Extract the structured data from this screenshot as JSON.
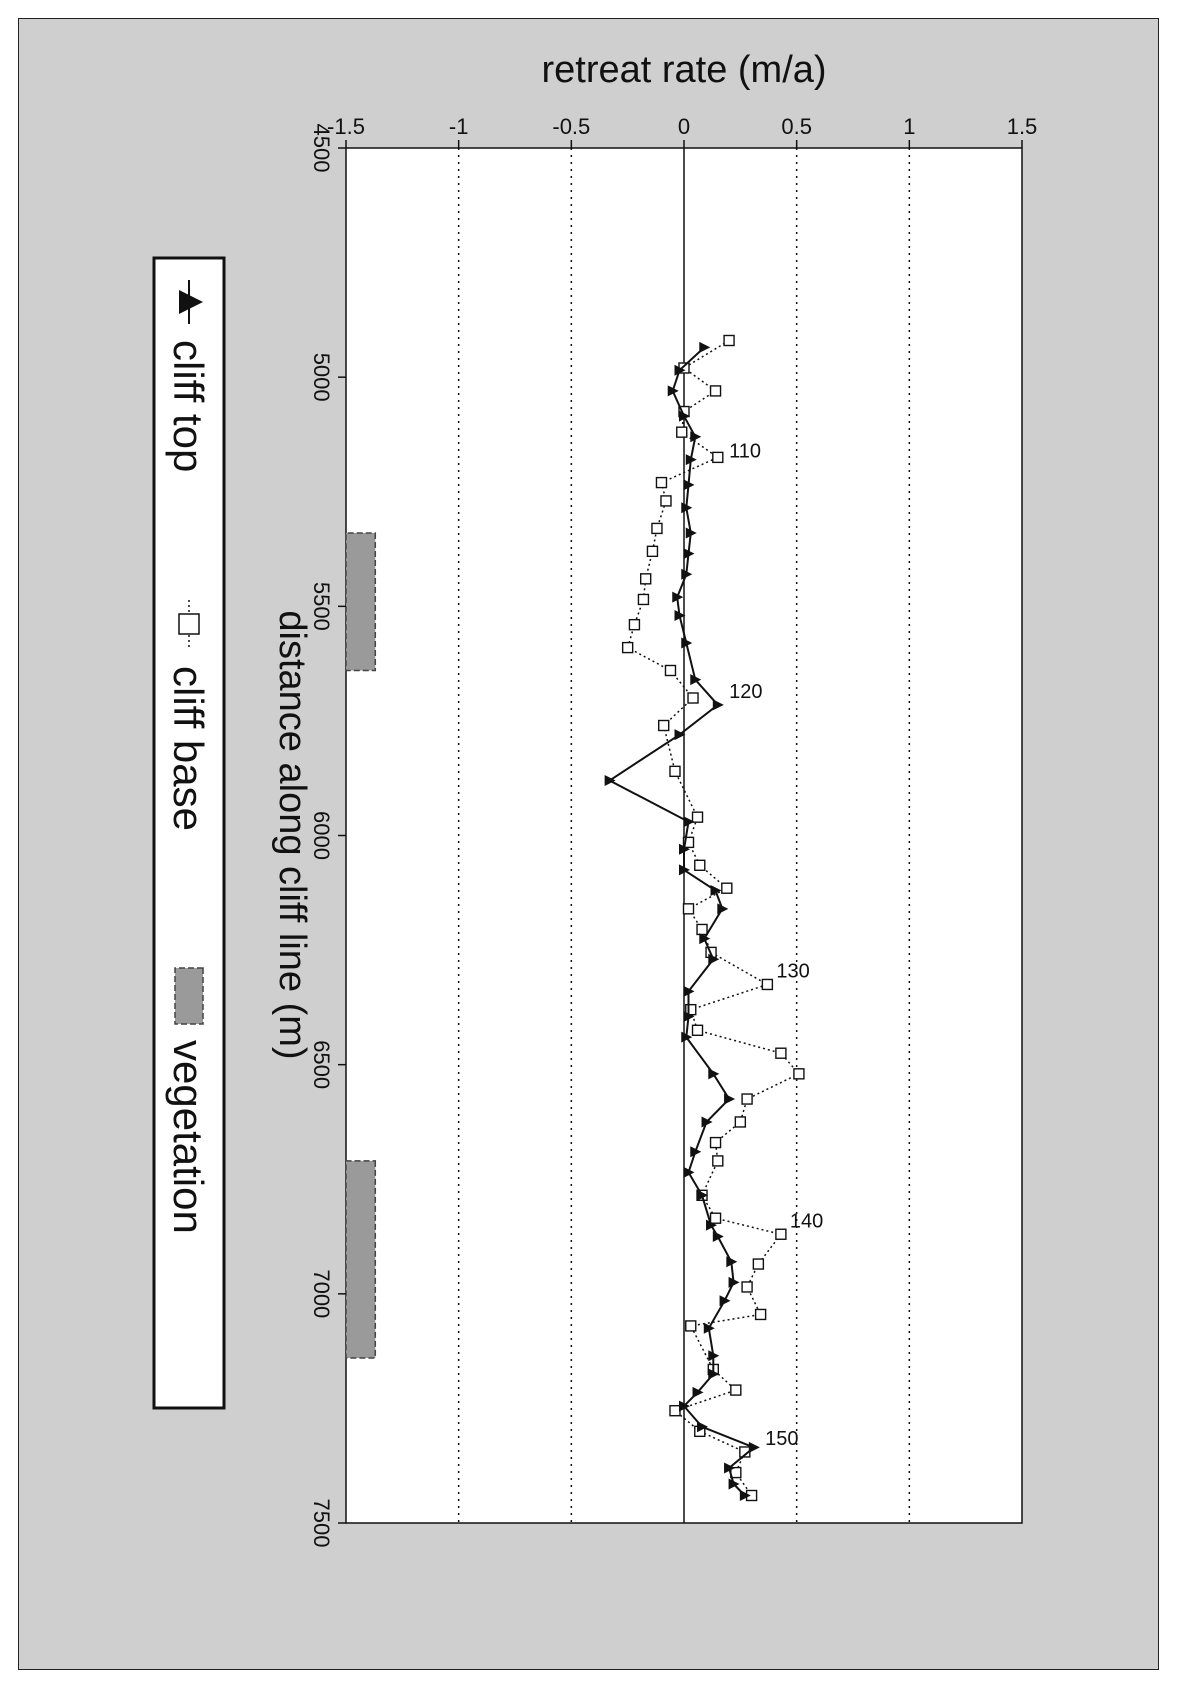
{
  "chart_data": {
    "type": "line",
    "xlabel": "distance along cliff line (m)",
    "ylabel": "retreat rate (m/a)",
    "xlim": [
      4500,
      7500
    ],
    "ylim": [
      -1.5,
      1.5
    ],
    "xticks": [
      4500,
      5000,
      5500,
      6000,
      6500,
      7000,
      7500
    ],
    "yticks": [
      -1.5,
      -1,
      -0.5,
      0,
      0.5,
      1,
      1.5
    ],
    "x_tick_labels": [
      "4500",
      "5000",
      "5500",
      "6000",
      "6500",
      "7000",
      "7500"
    ],
    "y_tick_labels": [
      "-1.5",
      "-1",
      "-0.5",
      "0",
      "0.5",
      "1",
      "1.5"
    ],
    "grid": "horizontal dotted at y = -1, -0.5, 0.5, 1; solid zero line",
    "legend_position": "bottom",
    "series": [
      {
        "name": "cliff top",
        "marker": "filled-triangle",
        "line": "solid",
        "color": "#111111",
        "points": [
          [
            4935,
            0.09
          ],
          [
            4985,
            -0.02
          ],
          [
            5030,
            -0.05
          ],
          [
            5085,
            0.0
          ],
          [
            5130,
            0.05
          ],
          [
            5180,
            0.03
          ],
          [
            5235,
            0.02
          ],
          [
            5285,
            0.01
          ],
          [
            5340,
            0.03
          ],
          [
            5385,
            0.02
          ],
          [
            5430,
            0.01
          ],
          [
            5480,
            -0.03
          ],
          [
            5520,
            -0.02
          ],
          [
            5580,
            0.01
          ],
          [
            5660,
            0.05
          ],
          [
            5715,
            0.15
          ],
          [
            5780,
            -0.02
          ],
          [
            5880,
            -0.33
          ],
          [
            5970,
            0.02
          ],
          [
            6030,
            0.0
          ],
          [
            6075,
            0.0
          ],
          [
            6120,
            0.14
          ],
          [
            6160,
            0.17
          ],
          [
            6225,
            0.09
          ],
          [
            6270,
            0.13
          ],
          [
            6340,
            0.02
          ],
          [
            6395,
            0.02
          ],
          [
            6440,
            0.01
          ],
          [
            6520,
            0.13
          ],
          [
            6575,
            0.2
          ],
          [
            6625,
            0.1
          ],
          [
            6690,
            0.05
          ],
          [
            6735,
            0.02
          ],
          [
            6785,
            0.08
          ],
          [
            6850,
            0.12
          ],
          [
            6875,
            0.15
          ],
          [
            6930,
            0.21
          ],
          [
            6975,
            0.22
          ],
          [
            7015,
            0.18
          ],
          [
            7075,
            0.11
          ],
          [
            7135,
            0.13
          ],
          [
            7175,
            0.13
          ],
          [
            7215,
            0.06
          ],
          [
            7245,
            0.0
          ],
          [
            7290,
            0.08
          ],
          [
            7335,
            0.31
          ],
          [
            7380,
            0.2
          ],
          [
            7415,
            0.22
          ],
          [
            7440,
            0.27
          ]
        ]
      },
      {
        "name": "cliff base",
        "marker": "open-square",
        "line": "dotted",
        "color": "#111111",
        "points": [
          [
            4920,
            0.2
          ],
          [
            4980,
            0.0
          ],
          [
            5030,
            0.14
          ],
          [
            5075,
            0.0
          ],
          [
            5120,
            -0.01
          ],
          [
            5175,
            0.15
          ],
          [
            5230,
            -0.1
          ],
          [
            5270,
            -0.08
          ],
          [
            5330,
            -0.12
          ],
          [
            5380,
            -0.14
          ],
          [
            5440,
            -0.17
          ],
          [
            5485,
            -0.18
          ],
          [
            5540,
            -0.22
          ],
          [
            5590,
            -0.25
          ],
          [
            5640,
            -0.06
          ],
          [
            5700,
            0.04
          ],
          [
            5760,
            -0.09
          ],
          [
            5860,
            -0.04
          ],
          [
            5960,
            0.06
          ],
          [
            6015,
            0.02
          ],
          [
            6065,
            0.07
          ],
          [
            6115,
            0.19
          ],
          [
            6160,
            0.02
          ],
          [
            6205,
            0.08
          ],
          [
            6255,
            0.12
          ],
          [
            6325,
            0.37
          ],
          [
            6380,
            0.03
          ],
          [
            6425,
            0.06
          ],
          [
            6475,
            0.43
          ],
          [
            6520,
            0.51
          ],
          [
            6575,
            0.28
          ],
          [
            6625,
            0.25
          ],
          [
            6670,
            0.14
          ],
          [
            6710,
            0.15
          ],
          [
            6785,
            0.08
          ],
          [
            6835,
            0.14
          ],
          [
            6870,
            0.43
          ],
          [
            6935,
            0.33
          ],
          [
            6985,
            0.28
          ],
          [
            7045,
            0.34
          ],
          [
            7070,
            0.03
          ],
          [
            7165,
            0.13
          ],
          [
            7210,
            0.23
          ],
          [
            7255,
            -0.04
          ],
          [
            7300,
            0.07
          ],
          [
            7345,
            0.27
          ],
          [
            7390,
            0.23
          ],
          [
            7440,
            0.3
          ]
        ]
      }
    ],
    "annotations": [
      {
        "text": "110",
        "x": 5175,
        "y": 0.2
      },
      {
        "text": "120",
        "x": 5700,
        "y": 0.2
      },
      {
        "text": "130",
        "x": 6310,
        "y": 0.41
      },
      {
        "text": "140",
        "x": 6855,
        "y": 0.47
      },
      {
        "text": "150",
        "x": 7330,
        "y": 0.36
      }
    ],
    "vegetation_bands": [
      {
        "x_start": 5340,
        "x_end": 5640,
        "y_start": -1.5,
        "y_end": -1.37
      },
      {
        "x_start": 6710,
        "x_end": 7140,
        "y_start": -1.5,
        "y_end": -1.37
      }
    ],
    "legend": [
      {
        "label": "cliff top",
        "symbol": "filled-triangle",
        "line": "solid"
      },
      {
        "label": "cliff base",
        "symbol": "open-square",
        "line": "dotted"
      },
      {
        "label": "vegetation",
        "symbol": "gray-hatched-box"
      }
    ],
    "colors": {
      "background": "#cfcfcf",
      "plot_area": "#ffffff",
      "vegetation": "#9a9a9a",
      "ink": "#111111"
    }
  }
}
